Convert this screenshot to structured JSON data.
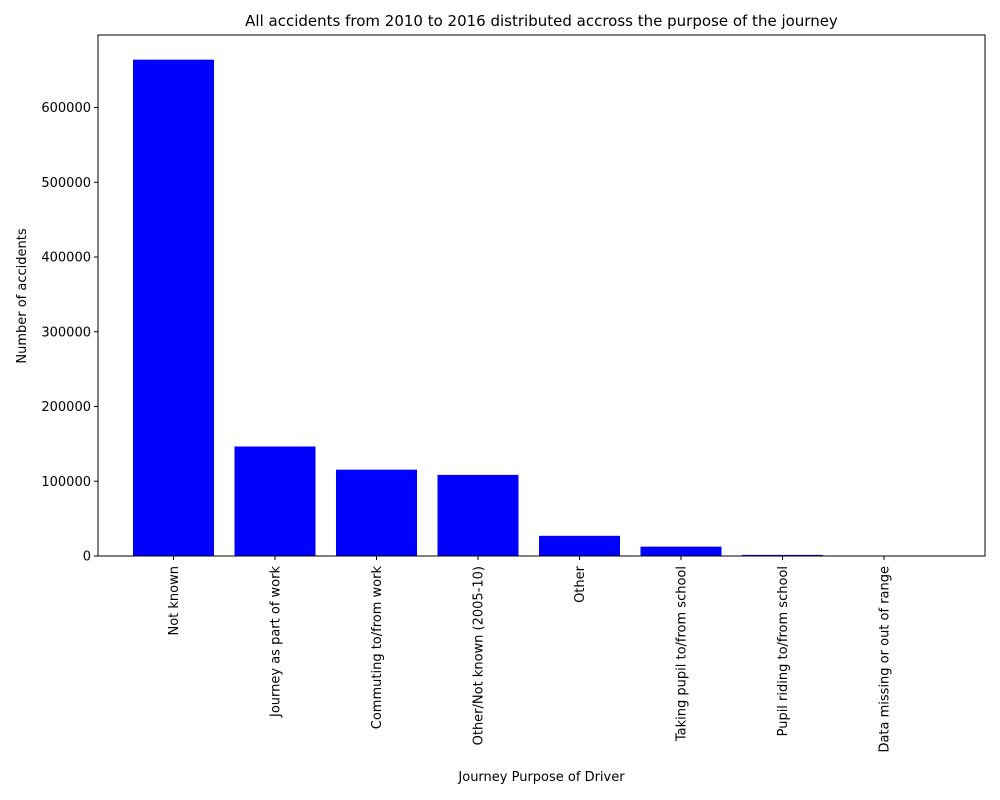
{
  "chart_data": {
    "type": "bar",
    "title": "All accidents from 2010 to 2016 distributed accross the purpose of the journey",
    "xlabel": "Journey Purpose of Driver",
    "ylabel": "Number of accidents",
    "categories": [
      "Not known",
      "Journey as part of work",
      "Commuting to/from work",
      "Other/Not known (2005-10)",
      "Other",
      "Taking pupil to/from school",
      "Pupil riding to/from school",
      "Data missing or out of range"
    ],
    "values": [
      664000,
      146500,
      115500,
      108500,
      27000,
      12500,
      1500,
      100
    ],
    "ylim": [
      0,
      697000
    ],
    "yticks": [
      0,
      100000,
      200000,
      300000,
      400000,
      500000,
      600000
    ],
    "ytick_labels": [
      "0",
      "100000",
      "200000",
      "300000",
      "400000",
      "500000",
      "600000"
    ],
    "bar_color": "#0000ff",
    "grid": false,
    "legend": "none"
  }
}
